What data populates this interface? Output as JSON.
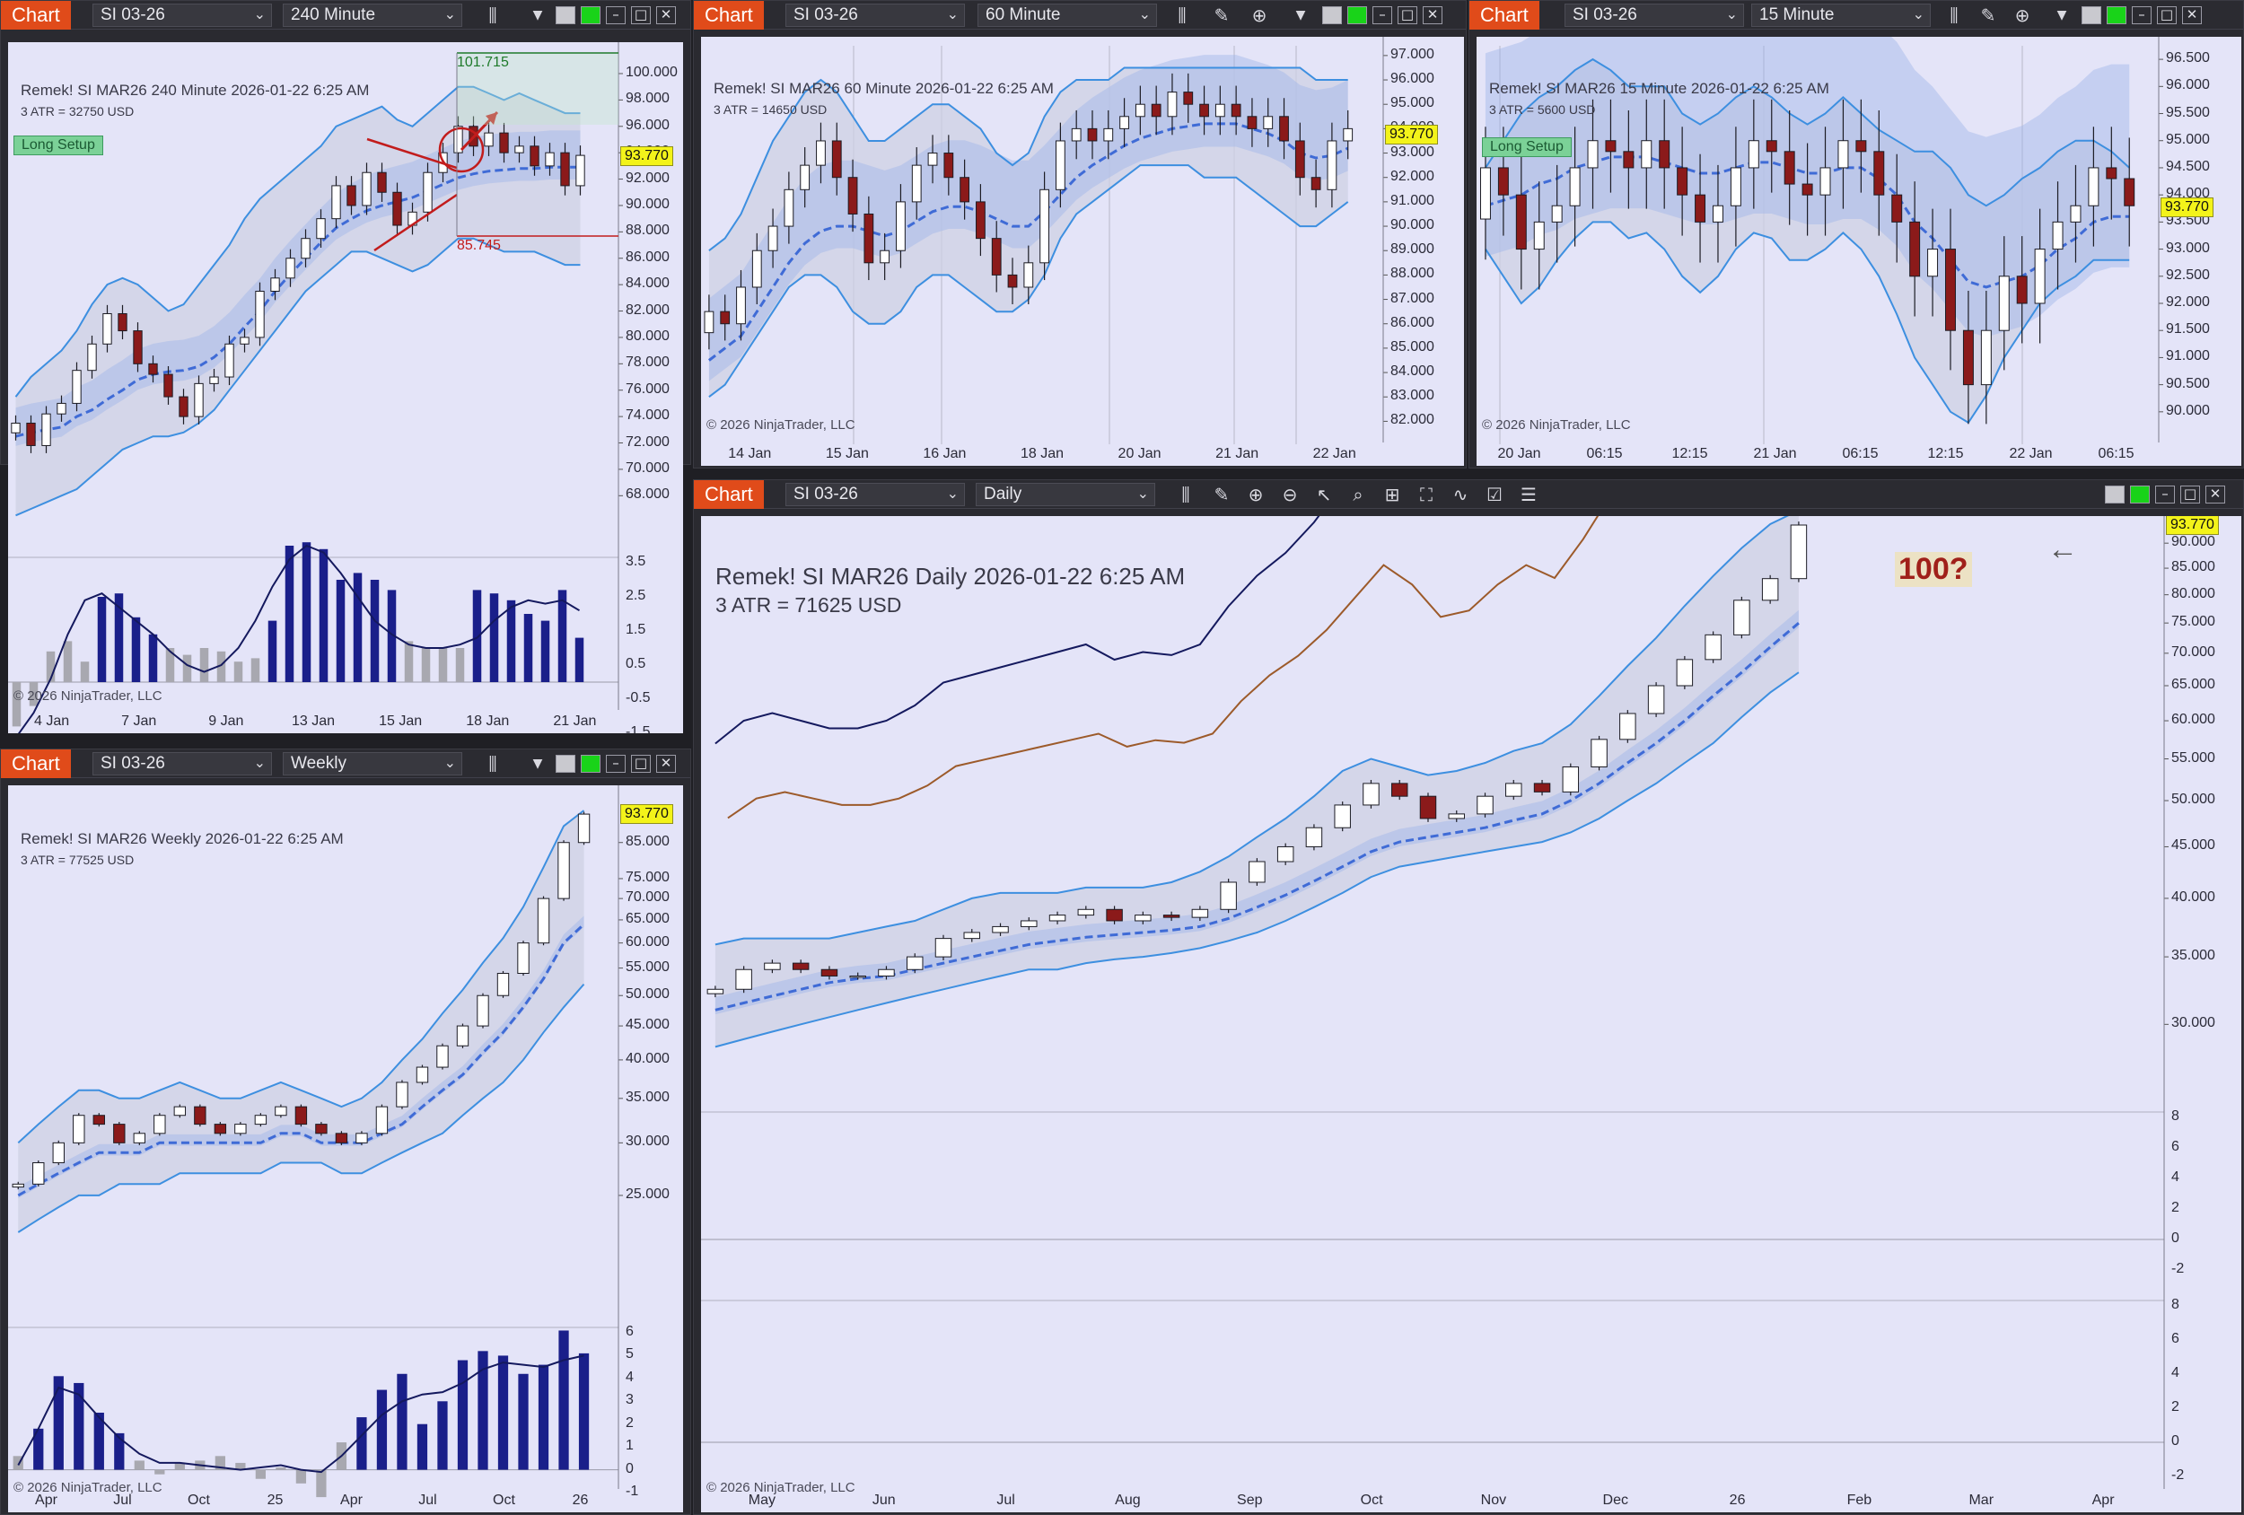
{
  "common": {
    "chart_label": "Chart",
    "instrument": "SI 03-26",
    "copyright": "© 2026 NinjaTrader, LLC",
    "last_price": "93.770",
    "colors": {
      "panel_bg": "#e4e4f8",
      "up_candle": "#ffffff",
      "down_candle": "#8b1a1a",
      "band": "#3d8fe0",
      "signal_arrow_up": "#1a2bd8",
      "signal_arrow_down": "#c21c1c",
      "histogram_pos": "#1a1f8a",
      "histogram_neg": "#a8a8b0",
      "chart_button": "#e04b1a",
      "price_tag": "#f3f31a"
    }
  },
  "windows": {
    "w240": {
      "timeframe": "240 Minute",
      "title": "Remek!  SI MAR26  240 Minute  2026-01-22 6:25 AM",
      "atr": "3 ATR = 32750 USD",
      "setup": "Long Setup",
      "target_high": "101.715",
      "target_low": "85.745"
    },
    "w60": {
      "timeframe": "60 Minute",
      "title": "Remek!  SI MAR26  60 Minute  2026-01-22 6:25 AM",
      "atr": "3 ATR = 14650 USD"
    },
    "w15": {
      "timeframe": "15 Minute",
      "title": "Remek!  SI MAR26  15 Minute  2026-01-22 6:25 AM",
      "atr": "3 ATR = 5600 USD",
      "setup": "Long Setup"
    },
    "wweekly": {
      "timeframe": "Weekly",
      "title": "Remek!  SI MAR26  Weekly  2026-01-22 6:25 AM",
      "atr": "3 ATR = 77525 USD"
    },
    "wdaily": {
      "timeframe": "Daily",
      "title": "Remek!  SI MAR26  Daily  2026-01-22 6:25 AM",
      "atr": "3 ATR = 71625 USD",
      "annotation": "100?",
      "back_arrow": "←"
    }
  },
  "chart_data": [
    {
      "id": "240min",
      "type": "line",
      "title": "Remek!  SI MAR26  240 Minute  2026-01-22 6:25 AM",
      "y_ticks": [
        "100.000",
        "98.000",
        "96.000",
        "94.000",
        "92.000",
        "90.000",
        "88.000",
        "86.000",
        "84.000",
        "82.000",
        "80.000",
        "78.000",
        "76.000",
        "74.000",
        "72.000",
        "70.000",
        "68.000"
      ],
      "x_ticks": [
        "4 Jan",
        "7 Jan",
        "9 Jan",
        "13 Jan",
        "15 Jan",
        "18 Jan",
        "21 Jan"
      ],
      "osc_ticks": [
        "3.5",
        "2.5",
        "1.5",
        "0.5",
        "-0.5",
        "-1.5"
      ],
      "ylim": [
        67,
        101.7
      ],
      "close": [
        73.5,
        71.8,
        74.2,
        75.0,
        77.5,
        79.5,
        81.8,
        80.5,
        78.0,
        77.2,
        75.5,
        74.0,
        76.5,
        77.0,
        79.5,
        80.0,
        83.5,
        84.5,
        86.0,
        87.5,
        89.0,
        91.5,
        90.0,
        92.5,
        91.0,
        88.5,
        89.5,
        92.5,
        94.0,
        96.0,
        94.5,
        95.5,
        94.0,
        94.5,
        93.0,
        94.0,
        91.5,
        93.8
      ],
      "upper_band": [
        75.5,
        77.0,
        78.0,
        79.0,
        80.5,
        82.5,
        84.0,
        84.5,
        84.0,
        83.0,
        82.0,
        82.5,
        84.0,
        85.5,
        87.0,
        89.0,
        90.5,
        91.5,
        92.5,
        93.5,
        94.5,
        96.0,
        96.5,
        97.0,
        97.5,
        96.5,
        96.0,
        97.0,
        98.0,
        99.0,
        99.0,
        98.5,
        98.0,
        98.5,
        98.0,
        97.5,
        97.0,
        97.0
      ],
      "mid_line": [
        72.5,
        72.8,
        73.0,
        73.2,
        74.0,
        74.5,
        75.3,
        76.0,
        76.8,
        77.2,
        77.4,
        77.5,
        77.8,
        78.5,
        79.5,
        80.8,
        82.0,
        83.5,
        84.8,
        86.0,
        87.2,
        88.3,
        89.0,
        89.6,
        90.0,
        90.3,
        90.6,
        91.1,
        91.6,
        92.1,
        92.4,
        92.6,
        92.7,
        92.8,
        92.8,
        92.9,
        92.9,
        92.9
      ],
      "lower_band": [
        66.5,
        67.0,
        67.5,
        68.0,
        68.5,
        69.5,
        70.5,
        71.5,
        72.0,
        72.5,
        72.5,
        72.8,
        73.5,
        74.5,
        76.0,
        77.5,
        79.0,
        80.5,
        82.0,
        83.5,
        84.5,
        85.5,
        86.5,
        86.5,
        86.0,
        85.5,
        85.0,
        85.5,
        86.5,
        87.5,
        87.5,
        87.0,
        86.5,
        86.5,
        86.5,
        86.0,
        85.5,
        85.5
      ],
      "osc": [
        -1.6,
        -0.9,
        0.1,
        1.4,
        2.4,
        2.6,
        2.2,
        1.8,
        1.4,
        0.9,
        0.5,
        0.3,
        0.5,
        1.0,
        1.8,
        2.8,
        3.6,
        4.0,
        3.8,
        3.2,
        2.5,
        1.8,
        1.4,
        1.1,
        1.0,
        1.0,
        1.1,
        1.3,
        1.8,
        2.2,
        2.4,
        2.3,
        2.4,
        2.1
      ],
      "hist": [
        -1.3,
        -0.7,
        0.9,
        1.2,
        0.6,
        2.5,
        2.6,
        1.9,
        1.4,
        1.0,
        0.8,
        1.0,
        0.9,
        0.6,
        0.7,
        1.8,
        4.0,
        4.1,
        3.9,
        3.0,
        3.2,
        3.0,
        2.7,
        1.2,
        1.0,
        1.0,
        1.0,
        2.7,
        2.6,
        2.4,
        2.0,
        1.8,
        2.7,
        1.3
      ]
    },
    {
      "id": "60min",
      "type": "line",
      "title": "Remek!  SI MAR26  60 Minute  2026-01-22 6:25 AM",
      "y_ticks": [
        "97.000",
        "96.000",
        "95.000",
        "94.000",
        "93.000",
        "92.000",
        "91.000",
        "90.000",
        "89.000",
        "88.000",
        "87.000",
        "86.000",
        "85.000",
        "84.000",
        "83.000",
        "82.000"
      ],
      "x_ticks": [
        "14 Jan",
        "15 Jan",
        "16 Jan",
        "18 Jan",
        "20 Jan",
        "21 Jan",
        "22 Jan"
      ],
      "ylim": [
        81.5,
        97.4
      ],
      "close": [
        86.5,
        86.0,
        87.5,
        89.0,
        90.0,
        91.5,
        92.5,
        93.5,
        92.0,
        90.5,
        88.5,
        89.0,
        91.0,
        92.5,
        93.0,
        92.0,
        91.0,
        89.5,
        88.0,
        87.5,
        88.5,
        91.5,
        93.5,
        94.0,
        93.5,
        94.0,
        94.5,
        95.0,
        94.5,
        95.5,
        95.0,
        94.5,
        95.0,
        94.5,
        94.0,
        94.5,
        93.5,
        92.0,
        91.5,
        93.5,
        94.0
      ],
      "upper_band": [
        89.0,
        89.5,
        90.5,
        92.0,
        93.5,
        94.5,
        95.5,
        96.0,
        95.5,
        94.5,
        93.5,
        93.5,
        94.0,
        94.5,
        95.0,
        95.0,
        94.5,
        94.0,
        93.0,
        92.5,
        93.0,
        94.5,
        95.5,
        96.0,
        96.0,
        96.0,
        96.5,
        96.5,
        96.5,
        96.5,
        96.5,
        96.5,
        96.5,
        96.5,
        96.5,
        96.5,
        96.5,
        96.5,
        96.0,
        96.0,
        96.0
      ],
      "mid_line": [
        84.5,
        85.0,
        85.5,
        86.5,
        87.5,
        88.5,
        89.3,
        89.8,
        90.0,
        90.0,
        89.8,
        89.6,
        89.8,
        90.2,
        90.6,
        90.8,
        90.8,
        90.6,
        90.3,
        90.0,
        90.0,
        90.6,
        91.3,
        92.0,
        92.5,
        92.9,
        93.3,
        93.6,
        93.8,
        94.0,
        94.1,
        94.2,
        94.2,
        94.2,
        94.0,
        93.8,
        93.5,
        93.0,
        92.8,
        92.9,
        93.2
      ],
      "lower_band": [
        83.0,
        83.5,
        84.5,
        85.5,
        86.5,
        87.5,
        88.0,
        88.0,
        87.5,
        86.5,
        86.0,
        86.0,
        86.5,
        87.5,
        88.0,
        88.0,
        87.5,
        87.0,
        86.5,
        86.5,
        87.0,
        88.0,
        89.5,
        90.5,
        91.0,
        91.5,
        92.0,
        92.5,
        92.5,
        92.5,
        92.5,
        92.0,
        92.0,
        92.0,
        91.5,
        91.0,
        90.5,
        90.0,
        90.0,
        90.5,
        91.0
      ]
    },
    {
      "id": "15min",
      "type": "line",
      "title": "Remek!  SI MAR26  15 Minute  2026-01-22 6:25 AM",
      "y_ticks": [
        "96.500",
        "96.000",
        "95.500",
        "95.000",
        "94.500",
        "94.000",
        "93.500",
        "93.000",
        "92.500",
        "92.000",
        "91.500",
        "91.000",
        "90.500",
        "90.000"
      ],
      "x_ticks": [
        "20 Jan",
        "06:15",
        "12:15",
        "21 Jan",
        "06:15",
        "12:15",
        "22 Jan",
        "06:15"
      ],
      "ylim": [
        89.6,
        96.75
      ],
      "close": [
        94.5,
        94.0,
        93.0,
        93.5,
        93.8,
        94.5,
        95.0,
        94.8,
        94.5,
        95.0,
        94.5,
        94.0,
        93.5,
        93.8,
        94.5,
        95.0,
        94.8,
        94.2,
        94.0,
        94.5,
        95.0,
        94.8,
        94.0,
        93.5,
        92.5,
        93.0,
        91.5,
        90.5,
        91.5,
        92.5,
        92.0,
        93.0,
        93.5,
        93.8,
        94.5,
        94.3,
        93.8
      ],
      "upper_band": [
        94.5,
        95.0,
        95.5,
        95.8,
        96.0,
        96.3,
        96.5,
        96.3,
        96.0,
        96.0,
        96.0,
        95.5,
        95.3,
        95.5,
        95.8,
        96.0,
        95.8,
        95.5,
        95.3,
        95.5,
        95.8,
        95.5,
        95.2,
        95.0,
        94.8,
        94.8,
        94.5,
        94.0,
        93.8,
        94.0,
        94.3,
        94.5,
        94.8,
        95.0,
        95.0,
        94.8,
        94.5
      ],
      "mid_line": [
        93.8,
        93.9,
        94.0,
        94.2,
        94.3,
        94.5,
        94.6,
        94.7,
        94.7,
        94.7,
        94.6,
        94.5,
        94.4,
        94.4,
        94.5,
        94.6,
        94.6,
        94.5,
        94.4,
        94.4,
        94.5,
        94.5,
        94.3,
        94.0,
        93.5,
        93.2,
        92.8,
        92.4,
        92.3,
        92.4,
        92.5,
        92.7,
        93.0,
        93.2,
        93.5,
        93.6,
        93.6
      ],
      "lower_band": [
        93.0,
        92.5,
        92.0,
        92.3,
        92.8,
        93.2,
        93.5,
        93.5,
        93.2,
        93.3,
        93.0,
        92.5,
        92.2,
        92.5,
        93.0,
        93.3,
        93.2,
        92.8,
        92.8,
        93.0,
        93.3,
        93.0,
        92.5,
        91.8,
        91.0,
        90.5,
        90.0,
        89.8,
        90.3,
        91.0,
        91.5,
        92.0,
        92.3,
        92.5,
        92.8,
        92.8,
        92.8
      ]
    },
    {
      "id": "weekly",
      "type": "line",
      "title": "Remek!  SI MAR26  Weekly  2026-01-22 6:25 AM",
      "y_ticks": [
        "85.000",
        "75.000",
        "70.000",
        "65.000",
        "60.000",
        "55.000",
        "50.000",
        "45.000",
        "40.000",
        "35.000",
        "30.000",
        "25.000"
      ],
      "x_ticks": [
        "Apr",
        "Jul",
        "Oct",
        "25",
        "Apr",
        "Jul",
        "Oct",
        "26"
      ],
      "osc_ticks": [
        "6",
        "5",
        "4",
        "3",
        "2",
        "1",
        "0",
        "-1"
      ],
      "scale": "log",
      "ylim": [
        22,
        95
      ],
      "close": [
        26,
        28,
        30,
        33,
        32,
        30,
        31,
        33,
        34,
        32,
        31,
        32,
        33,
        34,
        32,
        31,
        30,
        31,
        34,
        37,
        39,
        42,
        45,
        50,
        54,
        60,
        70,
        85,
        93.8
      ],
      "upper_band": [
        30,
        32,
        34,
        36,
        36,
        35,
        35,
        36,
        37,
        36,
        35,
        35,
        36,
        37,
        36,
        35,
        34,
        35,
        37,
        40,
        43,
        47,
        51,
        56,
        61,
        68,
        78,
        90,
        95
      ],
      "mid_line": [
        25,
        26,
        27,
        28,
        29,
        29,
        29,
        30,
        30,
        30,
        30,
        30,
        30,
        31,
        31,
        30,
        30,
        30,
        31,
        32,
        34,
        36,
        38,
        41,
        44,
        48,
        53,
        60,
        64
      ],
      "lower_band": [
        22,
        23,
        24,
        25,
        25,
        26,
        26,
        26,
        27,
        27,
        27,
        27,
        27,
        28,
        28,
        28,
        27,
        27,
        28,
        29,
        30,
        31,
        33,
        35,
        37,
        40,
        44,
        48,
        52
      ],
      "hist": [
        0.6,
        1.8,
        4.1,
        3.8,
        2.5,
        1.6,
        0.4,
        -0.2,
        0.3,
        0.4,
        0.6,
        0.3,
        -0.4,
        0.1,
        -0.6,
        -1.2,
        1.2,
        2.3,
        3.5,
        4.2,
        2.0,
        3.0,
        4.8,
        5.2,
        5.0,
        4.2,
        4.6,
        6.1,
        5.1
      ],
      "osc": [
        0.2,
        1.8,
        3.6,
        3.3,
        2.3,
        1.4,
        0.7,
        0.3,
        0.3,
        0.2,
        0.1,
        0.0,
        0.1,
        0.2,
        0.0,
        -0.1,
        0.6,
        1.5,
        2.4,
        3.0,
        3.3,
        3.4,
        3.8,
        4.4,
        4.7,
        4.6,
        4.5,
        4.8,
        5.0
      ]
    },
    {
      "id": "daily",
      "type": "line",
      "title": "Remek!  SI MAR26  Daily  2026-01-22 6:25 AM",
      "y_ticks": [
        "90.000",
        "85.000",
        "80.000",
        "75.000",
        "70.000",
        "65.000",
        "60.000",
        "55.000",
        "50.000",
        "45.000",
        "40.000",
        "35.000",
        "30.000"
      ],
      "x_ticks": [
        "May",
        "Jun",
        "Jul",
        "Aug",
        "Sep",
        "Oct",
        "Nov",
        "Dec",
        "26",
        "Feb",
        "Mar",
        "Apr"
      ],
      "osc1_ticks": [
        "8",
        "6",
        "4",
        "2",
        "0",
        "-2"
      ],
      "osc2_ticks": [
        "8",
        "6",
        "4",
        "2",
        "0",
        "-2"
      ],
      "scale": "log",
      "ylim": [
        28,
        93.8
      ],
      "close": [
        32.5,
        34.0,
        34.5,
        34.0,
        33.5,
        33.5,
        34.0,
        35.0,
        36.5,
        37.0,
        37.5,
        38.0,
        38.5,
        39.0,
        38.0,
        38.5,
        38.3,
        39.0,
        41.5,
        43.5,
        45.0,
        47.0,
        49.5,
        52.0,
        50.5,
        48.0,
        48.5,
        50.5,
        52.0,
        51.0,
        54.0,
        57.5,
        61.0,
        65.0,
        69.0,
        73.0,
        79.0,
        83.0,
        93.8
      ],
      "upper_band": [
        36,
        36.5,
        36.5,
        36.5,
        36.5,
        37,
        37.5,
        38,
        39,
        40,
        40.5,
        40.5,
        40.5,
        41,
        41,
        41,
        41.5,
        42.5,
        44,
        46,
        48,
        50.5,
        53.5,
        55,
        54,
        53,
        53.5,
        54.5,
        56,
        57,
        59.5,
        63.5,
        68,
        72.5,
        78,
        83.5,
        89,
        94,
        97
      ],
      "mid_line": [
        31,
        31.5,
        32,
        32.5,
        33,
        33.3,
        33.5,
        34,
        34.5,
        35,
        35.5,
        36,
        36.3,
        36.6,
        36.8,
        37,
        37.2,
        37.5,
        38.2,
        39.2,
        40.3,
        41.6,
        43,
        44.5,
        45.5,
        46,
        46.5,
        47,
        47.8,
        48.5,
        50,
        52,
        54.5,
        57,
        60,
        63.5,
        67,
        71,
        75
      ],
      "lower_band": [
        28.5,
        29,
        29.5,
        30,
        30.5,
        31,
        31.5,
        32,
        32.5,
        33,
        33.5,
        34,
        34,
        34.5,
        34.8,
        35,
        35.3,
        35.7,
        36.3,
        37,
        38,
        39.2,
        40.5,
        42,
        43,
        43.5,
        44,
        44.5,
        45,
        45.5,
        46.5,
        48,
        50,
        52,
        54.5,
        57,
        60.5,
        64,
        67
      ]
    }
  ]
}
